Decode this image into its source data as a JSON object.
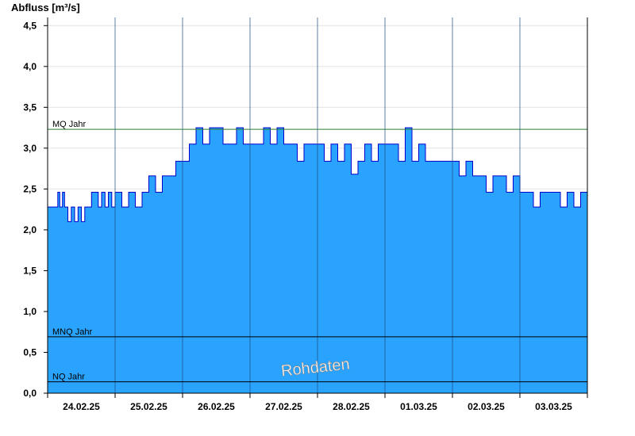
{
  "chart_data": {
    "type": "area",
    "ylabel": "Abfluss [m³/s]",
    "ylim": [
      0,
      4.6
    ],
    "yticks": [
      0.0,
      0.5,
      1.0,
      1.5,
      2.0,
      2.5,
      3.0,
      3.5,
      4.0,
      4.5
    ],
    "ytick_labels": [
      "0,0",
      "0,5",
      "1,0",
      "1,5",
      "2,0",
      "2,5",
      "3,0",
      "3,5",
      "4,0",
      "4,5"
    ],
    "xlim_days": [
      0,
      8
    ],
    "day_labels": [
      "24.02.25",
      "25.02.25",
      "26.02.25",
      "27.02.25",
      "28.02.25",
      "01.03.25",
      "02.03.25",
      "03.03.25"
    ],
    "reference_lines": [
      {
        "label": "MQ Jahr",
        "value": 3.23,
        "color": "#2e7d32"
      },
      {
        "label": "MNQ Jahr",
        "value": 0.69,
        "color": "#000000"
      },
      {
        "label": "NQ Jahr",
        "value": 0.14,
        "color": "#000000"
      }
    ],
    "watermark": "Rohdaten",
    "grid": true,
    "series": [
      {
        "fill": "#29a3fe",
        "stroke": "#0000cc",
        "x": [
          0.0,
          0.1,
          0.15,
          0.18,
          0.22,
          0.25,
          0.3,
          0.35,
          0.4,
          0.45,
          0.5,
          0.55,
          0.6,
          0.65,
          0.7,
          0.75,
          0.8,
          0.85,
          0.9,
          0.95,
          1.0,
          1.1,
          1.2,
          1.3,
          1.4,
          1.5,
          1.6,
          1.7,
          1.8,
          1.9,
          2.0,
          2.1,
          2.2,
          2.3,
          2.4,
          2.5,
          2.6,
          2.7,
          2.8,
          2.9,
          3.0,
          3.1,
          3.2,
          3.3,
          3.4,
          3.5,
          3.6,
          3.7,
          3.8,
          3.9,
          4.0,
          4.1,
          4.2,
          4.3,
          4.4,
          4.5,
          4.6,
          4.7,
          4.8,
          4.9,
          5.0,
          5.1,
          5.2,
          5.3,
          5.4,
          5.5,
          5.6,
          5.7,
          5.8,
          5.9,
          6.0,
          6.1,
          6.2,
          6.3,
          6.4,
          6.5,
          6.6,
          6.7,
          6.8,
          6.9,
          7.0,
          7.1,
          7.2,
          7.3,
          7.4,
          7.5,
          7.6,
          7.7,
          7.8,
          7.9,
          8.0
        ],
        "y": [
          2.28,
          2.28,
          2.46,
          2.28,
          2.46,
          2.28,
          2.1,
          2.28,
          2.1,
          2.28,
          2.1,
          2.28,
          2.28,
          2.46,
          2.46,
          2.28,
          2.46,
          2.28,
          2.46,
          2.28,
          2.46,
          2.28,
          2.46,
          2.28,
          2.46,
          2.66,
          2.46,
          2.66,
          2.66,
          2.84,
          2.84,
          3.05,
          3.25,
          3.05,
          3.25,
          3.25,
          3.05,
          3.05,
          3.25,
          3.05,
          3.05,
          3.05,
          3.25,
          3.05,
          3.25,
          3.05,
          3.05,
          2.84,
          3.05,
          3.05,
          3.05,
          2.84,
          3.05,
          2.84,
          3.05,
          2.68,
          2.84,
          3.05,
          2.84,
          3.05,
          3.05,
          3.05,
          2.84,
          3.25,
          2.84,
          3.05,
          2.84,
          2.84,
          2.84,
          2.84,
          2.84,
          2.66,
          2.84,
          2.66,
          2.66,
          2.46,
          2.66,
          2.66,
          2.46,
          2.66,
          2.46,
          2.46,
          2.28,
          2.46,
          2.46,
          2.46,
          2.28,
          2.46,
          2.28,
          2.46,
          2.28
        ]
      }
    ]
  }
}
